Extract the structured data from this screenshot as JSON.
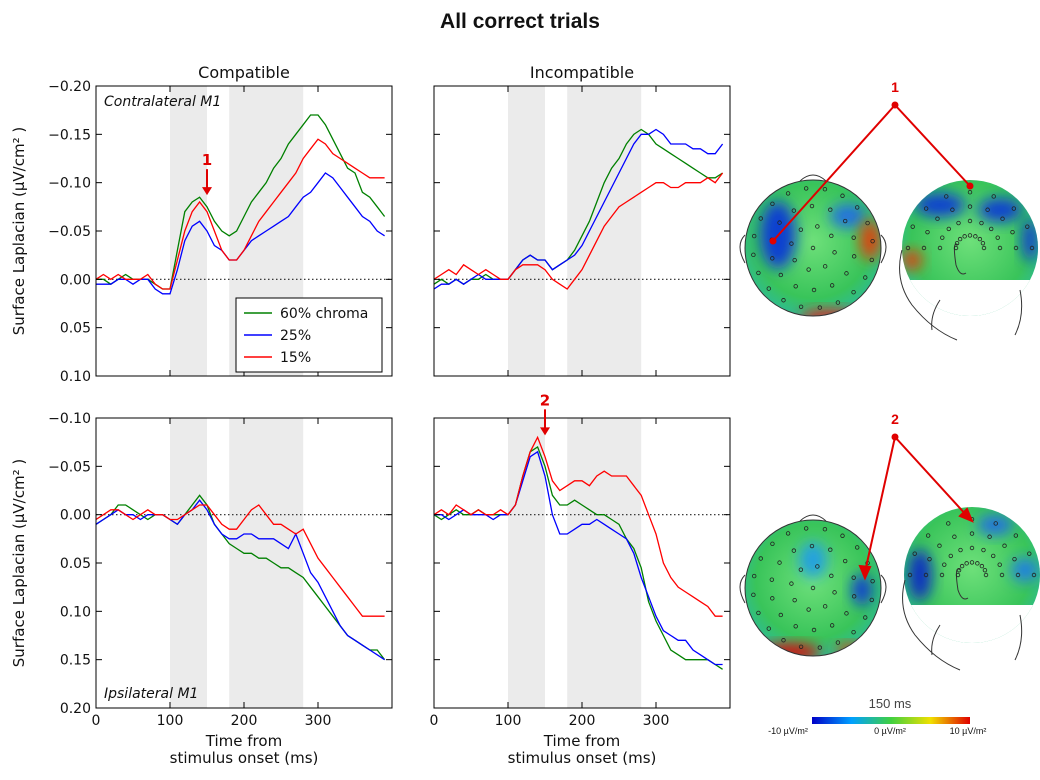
{
  "title": "All correct trials",
  "topography": {
    "labels": [
      "1",
      "2"
    ],
    "time": "150 ms",
    "colorbar_labels": [
      "-10 µV/m²",
      "0 µV/m²",
      "10 µV/m²"
    ]
  },
  "chart_data": [
    {
      "type": "line",
      "title": "Compatible",
      "panel_label": "Contralateral M1",
      "panel_label_loc": "upper left",
      "y_label": "Surface Laplacian (μV/cm² )",
      "show_ytick_labels": true,
      "show_xtick_labels": false,
      "xlim": [
        0,
        400
      ],
      "xticks": [
        0,
        100,
        200,
        300
      ],
      "ylim": [
        -0.2,
        0.1
      ],
      "y_inverted": true,
      "yticks": [
        {
          "value": -0.2,
          "label": "−0.20"
        },
        {
          "value": -0.15,
          "label": "−0.15"
        },
        {
          "value": -0.1,
          "label": "−0.10"
        },
        {
          "value": -0.05,
          "label": "−0.05"
        },
        {
          "value": 0,
          "label": "0.00"
        },
        {
          "value": 0.05,
          "label": "0.05"
        },
        {
          "value": 0.1,
          "label": "0.10"
        }
      ],
      "reference_line": 0,
      "shaded_regions": [
        [
          100,
          150
        ],
        [
          180,
          280
        ]
      ],
      "legend": "lower right",
      "annotations": [
        {
          "text": "1",
          "x": 150,
          "y": -0.085
        }
      ],
      "x": [
        0,
        10,
        20,
        30,
        40,
        50,
        60,
        70,
        80,
        90,
        100,
        110,
        120,
        130,
        140,
        150,
        160,
        170,
        180,
        190,
        200,
        210,
        220,
        230,
        240,
        250,
        260,
        270,
        280,
        290,
        300,
        310,
        320,
        330,
        340,
        350,
        360,
        370,
        380,
        390
      ],
      "series": [
        {
          "name": "60% chroma",
          "color": "#008000",
          "values": [
            0,
            0,
            0.005,
            0,
            -0.005,
            0,
            0,
            0,
            0.005,
            0.01,
            0.01,
            -0.03,
            -0.07,
            -0.08,
            -0.085,
            -0.075,
            -0.06,
            -0.05,
            -0.045,
            -0.05,
            -0.065,
            -0.08,
            -0.09,
            -0.1,
            -0.115,
            -0.125,
            -0.14,
            -0.15,
            -0.16,
            -0.17,
            -0.17,
            -0.16,
            -0.145,
            -0.13,
            -0.115,
            -0.11,
            -0.09,
            -0.085,
            -0.075,
            -0.065
          ]
        },
        {
          "name": "25%",
          "color": "#0000ff",
          "values": [
            0.005,
            0.005,
            0.005,
            0,
            0,
            0.005,
            0,
            0,
            0.01,
            0.015,
            0.015,
            -0.01,
            -0.04,
            -0.055,
            -0.06,
            -0.05,
            -0.035,
            -0.03,
            -0.02,
            -0.02,
            -0.03,
            -0.04,
            -0.045,
            -0.05,
            -0.055,
            -0.06,
            -0.065,
            -0.075,
            -0.085,
            -0.09,
            -0.1,
            -0.11,
            -0.105,
            -0.095,
            -0.085,
            -0.075,
            -0.065,
            -0.06,
            -0.05,
            -0.045
          ]
        },
        {
          "name": "15%",
          "color": "#ff0000",
          "values": [
            0,
            -0.005,
            0,
            -0.005,
            0,
            0,
            0,
            -0.005,
            0.005,
            0.01,
            0.01,
            -0.02,
            -0.05,
            -0.07,
            -0.08,
            -0.07,
            -0.05,
            -0.03,
            -0.02,
            -0.02,
            -0.03,
            -0.045,
            -0.06,
            -0.07,
            -0.08,
            -0.09,
            -0.1,
            -0.11,
            -0.125,
            -0.135,
            -0.145,
            -0.14,
            -0.13,
            -0.125,
            -0.12,
            -0.115,
            -0.11,
            -0.105,
            -0.105,
            -0.105
          ]
        }
      ]
    },
    {
      "type": "line",
      "title": "Incompatible",
      "show_ytick_labels": false,
      "show_xtick_labels": false,
      "xlim": [
        0,
        400
      ],
      "xticks": [
        0,
        100,
        200,
        300
      ],
      "ylim": [
        -0.2,
        0.1
      ],
      "y_inverted": true,
      "yticks": [
        -0.2,
        -0.15,
        -0.1,
        -0.05,
        0,
        0.05,
        0.1
      ],
      "reference_line": 0,
      "shaded_regions": [
        [
          100,
          150
        ],
        [
          180,
          280
        ]
      ],
      "x": [
        0,
        10,
        20,
        30,
        40,
        50,
        60,
        70,
        80,
        90,
        100,
        110,
        120,
        130,
        140,
        150,
        160,
        170,
        180,
        190,
        200,
        210,
        220,
        230,
        240,
        250,
        260,
        270,
        280,
        290,
        300,
        310,
        320,
        330,
        340,
        350,
        360,
        370,
        380,
        390
      ],
      "series": [
        {
          "color": "#008000",
          "values": [
            0.005,
            0,
            0.005,
            0,
            0.005,
            0,
            0,
            -0.005,
            0,
            0,
            0,
            -0.01,
            -0.02,
            -0.025,
            -0.02,
            -0.02,
            -0.01,
            -0.015,
            -0.02,
            -0.03,
            -0.045,
            -0.06,
            -0.08,
            -0.1,
            -0.115,
            -0.125,
            -0.14,
            -0.15,
            -0.155,
            -0.15,
            -0.14,
            -0.135,
            -0.13,
            -0.125,
            -0.12,
            -0.115,
            -0.11,
            -0.105,
            -0.105,
            -0.11
          ]
        },
        {
          "color": "#0000ff",
          "values": [
            0.01,
            0.005,
            0.005,
            0,
            0.005,
            0,
            -0.005,
            0,
            0,
            0,
            0,
            -0.01,
            -0.02,
            -0.025,
            -0.02,
            -0.02,
            -0.01,
            -0.015,
            -0.02,
            -0.025,
            -0.035,
            -0.05,
            -0.065,
            -0.08,
            -0.095,
            -0.11,
            -0.125,
            -0.14,
            -0.15,
            -0.15,
            -0.155,
            -0.15,
            -0.14,
            -0.14,
            -0.14,
            -0.135,
            -0.135,
            -0.13,
            -0.13,
            -0.14
          ]
        },
        {
          "color": "#ff0000",
          "values": [
            0,
            -0.005,
            -0.01,
            -0.005,
            -0.015,
            -0.01,
            -0.005,
            -0.01,
            -0.005,
            0,
            0,
            -0.01,
            -0.015,
            -0.015,
            -0.015,
            -0.01,
            0,
            0.005,
            0.01,
            0,
            -0.01,
            -0.025,
            -0.04,
            -0.055,
            -0.065,
            -0.075,
            -0.08,
            -0.085,
            -0.09,
            -0.095,
            -0.1,
            -0.1,
            -0.095,
            -0.095,
            -0.1,
            -0.1,
            -0.1,
            -0.105,
            -0.1,
            -0.11
          ]
        }
      ]
    },
    {
      "type": "line",
      "panel_label": "Ipsilateral M1",
      "panel_label_loc": "lower left",
      "y_label": "Surface Laplacian (μV/cm² )",
      "x_label": [
        "Time from",
        "stimulus onset (ms)"
      ],
      "show_ytick_labels": true,
      "show_xtick_labels": true,
      "xlim": [
        0,
        400
      ],
      "xticks": [
        0,
        100,
        200,
        300
      ],
      "ylim": [
        -0.1,
        0.2
      ],
      "y_inverted": true,
      "yticks": [
        {
          "value": -0.1,
          "label": "−0.10"
        },
        {
          "value": -0.05,
          "label": "−0.05"
        },
        {
          "value": 0,
          "label": "0.00"
        },
        {
          "value": 0.05,
          "label": "0.05"
        },
        {
          "value": 0.1,
          "label": "0.10"
        },
        {
          "value": 0.15,
          "label": "0.15"
        },
        {
          "value": 0.2,
          "label": "0.20"
        }
      ],
      "reference_line": 0,
      "shaded_regions": [
        [
          100,
          150
        ],
        [
          180,
          280
        ]
      ],
      "x": [
        0,
        10,
        20,
        30,
        40,
        50,
        60,
        70,
        80,
        90,
        100,
        110,
        120,
        130,
        140,
        150,
        160,
        170,
        180,
        190,
        200,
        210,
        220,
        230,
        240,
        250,
        260,
        270,
        280,
        290,
        300,
        310,
        320,
        330,
        340,
        350,
        360,
        370,
        380,
        390
      ],
      "series": [
        {
          "color": "#008000",
          "values": [
            0.01,
            0.005,
            0,
            -0.01,
            -0.01,
            -0.005,
            0,
            0.005,
            0,
            0,
            0.005,
            0.01,
            0,
            -0.01,
            -0.02,
            -0.01,
            0.01,
            0.02,
            0.03,
            0.035,
            0.04,
            0.04,
            0.045,
            0.045,
            0.05,
            0.055,
            0.055,
            0.06,
            0.065,
            0.075,
            0.085,
            0.095,
            0.105,
            0.115,
            0.125,
            0.13,
            0.135,
            0.14,
            0.14,
            0.15
          ]
        },
        {
          "color": "#0000ff",
          "values": [
            0.01,
            0.005,
            0,
            -0.005,
            0,
            0,
            0.005,
            0,
            0,
            0,
            0.005,
            0.01,
            0,
            -0.005,
            -0.015,
            -0.005,
            0.01,
            0.02,
            0.025,
            0.025,
            0.02,
            0.02,
            0.025,
            0.025,
            0.025,
            0.03,
            0.035,
            0.02,
            0.04,
            0.06,
            0.07,
            0.085,
            0.1,
            0.115,
            0.125,
            0.13,
            0.135,
            0.14,
            0.145,
            0.15
          ]
        },
        {
          "color": "#ff0000",
          "values": [
            0.005,
            0,
            -0.005,
            -0.005,
            0,
            0.005,
            0,
            -0.005,
            0,
            0,
            0.005,
            0.005,
            0,
            -0.005,
            -0.01,
            -0.01,
            0,
            0.01,
            0.015,
            0.015,
            0.005,
            -0.005,
            -0.01,
            0,
            0.01,
            0.01,
            0.015,
            0.02,
            0.015,
            0.03,
            0.045,
            0.055,
            0.065,
            0.075,
            0.085,
            0.095,
            0.105,
            0.105,
            0.105,
            0.105
          ]
        }
      ]
    },
    {
      "type": "line",
      "x_label": [
        "Time from",
        "stimulus onset (ms)"
      ],
      "show_ytick_labels": false,
      "show_xtick_labels": true,
      "xlim": [
        0,
        400
      ],
      "xticks": [
        0,
        100,
        200,
        300
      ],
      "ylim": [
        -0.1,
        0.2
      ],
      "y_inverted": true,
      "yticks": [
        -0.1,
        -0.05,
        0,
        0.05,
        0.1,
        0.15,
        0.2
      ],
      "reference_line": 0,
      "shaded_regions": [
        [
          100,
          150
        ],
        [
          180,
          280
        ]
      ],
      "annotations": [
        {
          "text": "2",
          "x": 150,
          "y": -0.08
        }
      ],
      "x": [
        0,
        10,
        20,
        30,
        40,
        50,
        60,
        70,
        80,
        90,
        100,
        110,
        120,
        130,
        140,
        150,
        160,
        170,
        180,
        190,
        200,
        210,
        220,
        230,
        240,
        250,
        260,
        270,
        280,
        290,
        300,
        310,
        320,
        330,
        340,
        350,
        360,
        370,
        380,
        390
      ],
      "series": [
        {
          "color": "#008000",
          "values": [
            0,
            0.005,
            0,
            -0.005,
            0,
            0,
            -0.005,
            0,
            0,
            0,
            0,
            -0.01,
            -0.04,
            -0.065,
            -0.07,
            -0.05,
            -0.02,
            -0.01,
            -0.01,
            -0.015,
            -0.01,
            -0.005,
            0,
            0,
            0.005,
            0.01,
            0.025,
            0.035,
            0.055,
            0.09,
            0.11,
            0.125,
            0.14,
            0.145,
            0.15,
            0.15,
            0.15,
            0.15,
            0.155,
            0.16
          ]
        },
        {
          "color": "#0000ff",
          "values": [
            0,
            0,
            0.005,
            0,
            -0.005,
            0,
            0,
            0,
            0.005,
            0,
            0,
            -0.01,
            -0.035,
            -0.06,
            -0.065,
            -0.04,
            0,
            0.02,
            0.02,
            0.015,
            0.01,
            0.01,
            0.005,
            0.01,
            0.015,
            0.02,
            0.025,
            0.04,
            0.065,
            0.085,
            0.105,
            0.12,
            0.125,
            0.13,
            0.13,
            0.14,
            0.145,
            0.15,
            0.155,
            0.155
          ]
        },
        {
          "color": "#ff0000",
          "values": [
            0,
            -0.005,
            0,
            -0.01,
            -0.005,
            0,
            -0.005,
            0,
            0,
            -0.005,
            0,
            -0.01,
            -0.04,
            -0.065,
            -0.08,
            -0.06,
            -0.035,
            -0.025,
            -0.03,
            -0.035,
            -0.035,
            -0.03,
            -0.04,
            -0.045,
            -0.04,
            -0.04,
            -0.04,
            -0.03,
            -0.02,
            0,
            0.02,
            0.05,
            0.065,
            0.075,
            0.08,
            0.085,
            0.09,
            0.095,
            0.105,
            0.105
          ]
        }
      ]
    }
  ]
}
